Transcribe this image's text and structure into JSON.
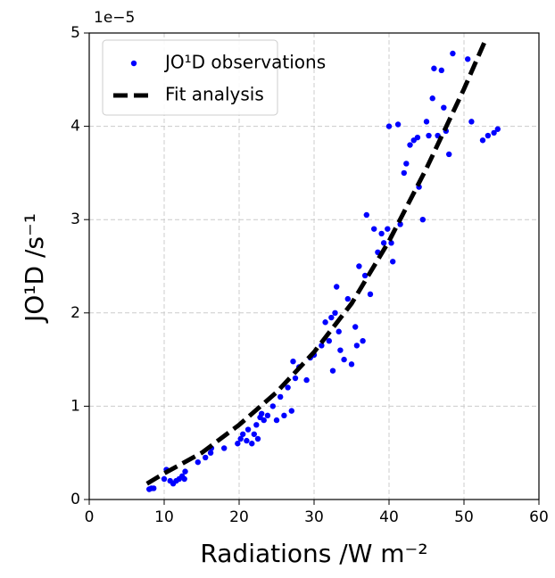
{
  "chart_data": {
    "type": "scatter",
    "x_label": "Radiations /W m⁻²",
    "y_label": "JO¹D /s⁻¹",
    "y_offset_text": "1e−5",
    "xlim": [
      0,
      60
    ],
    "xticks": [
      0,
      10,
      20,
      30,
      40,
      50,
      60
    ],
    "ylim": [
      0,
      5
    ],
    "yticks": [
      0,
      1,
      2,
      3,
      4,
      5
    ],
    "grid": true,
    "legend": "upper left",
    "series": [
      {
        "name": "JO¹D observations",
        "color": "#0000ff",
        "kind": "scatter",
        "x": [
          8,
          8.3,
          8.6,
          10,
          10.3,
          10.8,
          11.2,
          11.6,
          12,
          12.4,
          12.7,
          12.8,
          14.5,
          15.5,
          16.2,
          16.3,
          18,
          19.8,
          20.2,
          20.5,
          21,
          21.2,
          21.7,
          22,
          22.3,
          22.5,
          22.8,
          23,
          23.3,
          23.8,
          24.5,
          25,
          25.5,
          26,
          26.5,
          27,
          27.2,
          27.5,
          28,
          29,
          29.5,
          30,
          31,
          31.5,
          32,
          32.3,
          32.5,
          32.8,
          33,
          33.3,
          33.5,
          34,
          34.5,
          35,
          35.5,
          35.7,
          36,
          36.5,
          36.8,
          37,
          37.5,
          38,
          38.5,
          39,
          39.3,
          39.8,
          40,
          40.3,
          40.5,
          41.2,
          41.5,
          42,
          42.3,
          42.8,
          43.3,
          43.8,
          44,
          44.5,
          45,
          45.3,
          45.8,
          46,
          46.5,
          47,
          47.3,
          47.6,
          48,
          48.5,
          50.5,
          51,
          52.5,
          53.2,
          54,
          54.5
        ],
        "values": [
          0.11,
          0.12,
          0.12,
          0.22,
          0.32,
          0.2,
          0.17,
          0.2,
          0.22,
          0.25,
          0.22,
          0.3,
          0.4,
          0.45,
          0.5,
          0.55,
          0.55,
          0.6,
          0.65,
          0.7,
          0.63,
          0.75,
          0.6,
          0.7,
          0.8,
          0.65,
          0.88,
          0.92,
          0.85,
          0.9,
          1.0,
          0.85,
          1.1,
          0.9,
          1.2,
          0.95,
          1.48,
          1.3,
          1.42,
          1.28,
          1.52,
          1.55,
          1.65,
          1.9,
          1.7,
          1.95,
          1.38,
          2.0,
          2.28,
          1.8,
          1.6,
          1.5,
          2.15,
          1.45,
          1.85,
          1.65,
          2.5,
          1.7,
          2.4,
          3.05,
          2.2,
          2.9,
          2.65,
          2.85,
          2.75,
          2.9,
          4.0,
          2.75,
          2.55,
          4.02,
          2.95,
          3.5,
          3.6,
          3.8,
          3.85,
          3.88,
          3.35,
          3.0,
          4.05,
          3.9,
          4.3,
          4.62,
          3.9,
          4.6,
          4.2,
          3.95,
          3.7,
          4.78,
          4.72,
          4.05,
          3.85,
          3.9,
          3.93,
          3.97
        ]
      },
      {
        "name": "Fit analysis",
        "color": "#000000",
        "kind": "line",
        "x": [
          7.7,
          10,
          15,
          20,
          25,
          30,
          35,
          40,
          45,
          50,
          53
        ],
        "values": [
          0.17,
          0.28,
          0.5,
          0.8,
          1.15,
          1.58,
          2.1,
          2.77,
          3.55,
          4.4,
          4.95
        ]
      }
    ]
  }
}
